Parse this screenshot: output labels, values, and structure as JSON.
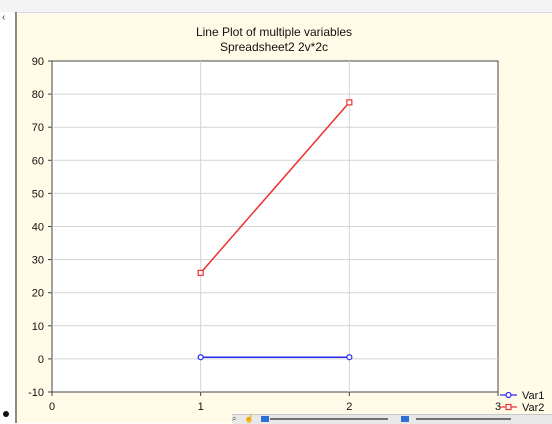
{
  "icons": {
    "window_corner": "resize-corner-icon",
    "status_bullet": "bullet-icon",
    "zoom": "zoom-icon",
    "hand": "hand-tool-icon",
    "marker_var1": "circle-marker-icon",
    "marker_var2": "square-marker-icon"
  },
  "colors": {
    "plot_background": "#ffffff",
    "chart_background": "#fffbe7",
    "grid": "#d4d4d4",
    "var1": "#2a2af2",
    "var2": "#ee3030"
  },
  "chart_data": {
    "type": "line",
    "title": "Line Plot of multiple variables",
    "subtitle": "Spreadsheet2 2v*2c",
    "x": [
      1,
      2
    ],
    "series": [
      {
        "name": "Var1",
        "values": [
          0.5,
          0.5
        ],
        "marker": "circle",
        "color": "#2a2af2"
      },
      {
        "name": "Var2",
        "values": [
          26,
          77.5
        ],
        "marker": "square",
        "color": "#ee3030"
      }
    ],
    "xlim": [
      0,
      3
    ],
    "ylim": [
      -10,
      90
    ],
    "xticks": [
      0,
      1,
      2,
      3
    ],
    "yticks": [
      -10,
      0,
      10,
      20,
      30,
      40,
      50,
      60,
      70,
      80,
      90
    ],
    "grid": true,
    "legend_position": "bottom-right",
    "xlabel": "",
    "ylabel": ""
  }
}
